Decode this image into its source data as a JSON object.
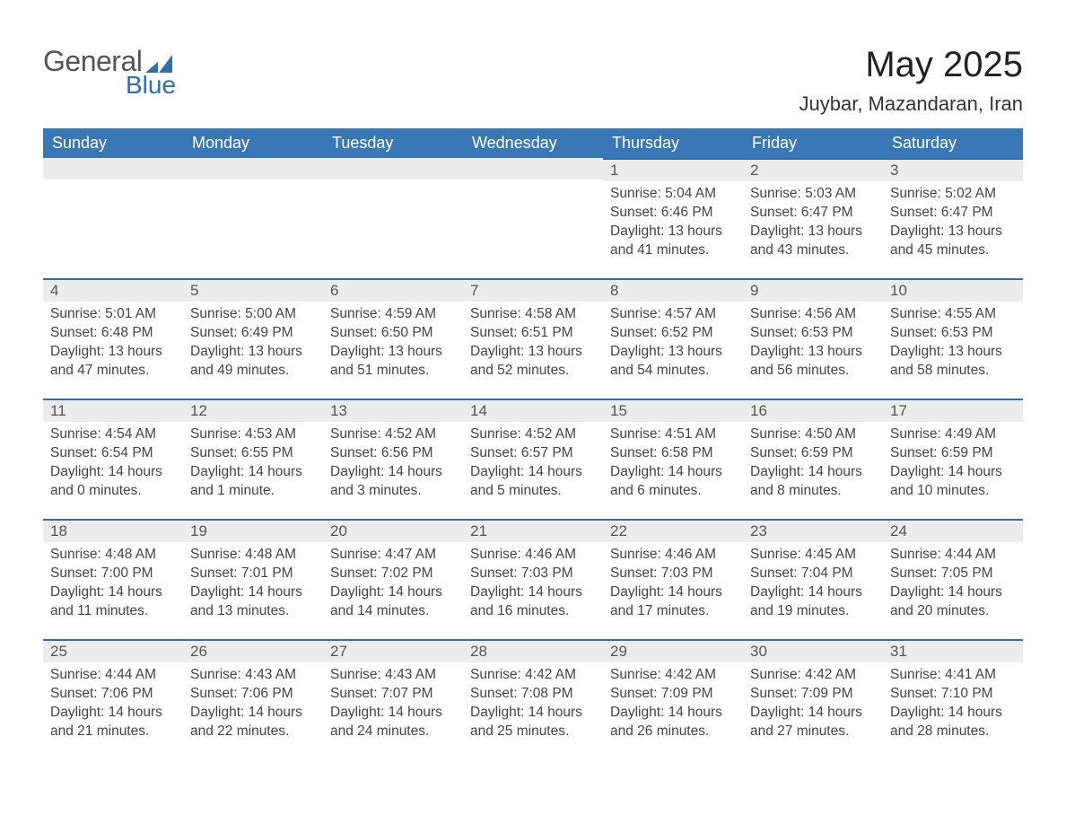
{
  "logo": {
    "text_general": "General",
    "text_blue": "Blue",
    "triangle_color": "#2f6fb0"
  },
  "title": "May 2025",
  "location": "Juybar, Mazandaran, Iran",
  "weekdays": [
    "Sunday",
    "Monday",
    "Tuesday",
    "Wednesday",
    "Thursday",
    "Friday",
    "Saturday"
  ],
  "labels": {
    "sunrise": "Sunrise:",
    "sunset": "Sunset:",
    "daylight": "Daylight:"
  },
  "colors": {
    "header_bg": "#3a77b7",
    "header_text": "#ffffff",
    "day_bar_bg": "#ececec",
    "day_bar_border": "#2f6fb0",
    "body_text": "#444444"
  },
  "typography": {
    "title_fontsize": 40,
    "location_fontsize": 22,
    "header_fontsize": 18,
    "daynum_fontsize": 17,
    "body_fontsize": 15.5
  },
  "weeks": [
    [
      null,
      null,
      null,
      null,
      {
        "n": "1",
        "sr": "5:04 AM",
        "ss": "6:46 PM",
        "dl": "13 hours and 41 minutes."
      },
      {
        "n": "2",
        "sr": "5:03 AM",
        "ss": "6:47 PM",
        "dl": "13 hours and 43 minutes."
      },
      {
        "n": "3",
        "sr": "5:02 AM",
        "ss": "6:47 PM",
        "dl": "13 hours and 45 minutes."
      }
    ],
    [
      {
        "n": "4",
        "sr": "5:01 AM",
        "ss": "6:48 PM",
        "dl": "13 hours and 47 minutes."
      },
      {
        "n": "5",
        "sr": "5:00 AM",
        "ss": "6:49 PM",
        "dl": "13 hours and 49 minutes."
      },
      {
        "n": "6",
        "sr": "4:59 AM",
        "ss": "6:50 PM",
        "dl": "13 hours and 51 minutes."
      },
      {
        "n": "7",
        "sr": "4:58 AM",
        "ss": "6:51 PM",
        "dl": "13 hours and 52 minutes."
      },
      {
        "n": "8",
        "sr": "4:57 AM",
        "ss": "6:52 PM",
        "dl": "13 hours and 54 minutes."
      },
      {
        "n": "9",
        "sr": "4:56 AM",
        "ss": "6:53 PM",
        "dl": "13 hours and 56 minutes."
      },
      {
        "n": "10",
        "sr": "4:55 AM",
        "ss": "6:53 PM",
        "dl": "13 hours and 58 minutes."
      }
    ],
    [
      {
        "n": "11",
        "sr": "4:54 AM",
        "ss": "6:54 PM",
        "dl": "14 hours and 0 minutes."
      },
      {
        "n": "12",
        "sr": "4:53 AM",
        "ss": "6:55 PM",
        "dl": "14 hours and 1 minute."
      },
      {
        "n": "13",
        "sr": "4:52 AM",
        "ss": "6:56 PM",
        "dl": "14 hours and 3 minutes."
      },
      {
        "n": "14",
        "sr": "4:52 AM",
        "ss": "6:57 PM",
        "dl": "14 hours and 5 minutes."
      },
      {
        "n": "15",
        "sr": "4:51 AM",
        "ss": "6:58 PM",
        "dl": "14 hours and 6 minutes."
      },
      {
        "n": "16",
        "sr": "4:50 AM",
        "ss": "6:59 PM",
        "dl": "14 hours and 8 minutes."
      },
      {
        "n": "17",
        "sr": "4:49 AM",
        "ss": "6:59 PM",
        "dl": "14 hours and 10 minutes."
      }
    ],
    [
      {
        "n": "18",
        "sr": "4:48 AM",
        "ss": "7:00 PM",
        "dl": "14 hours and 11 minutes."
      },
      {
        "n": "19",
        "sr": "4:48 AM",
        "ss": "7:01 PM",
        "dl": "14 hours and 13 minutes."
      },
      {
        "n": "20",
        "sr": "4:47 AM",
        "ss": "7:02 PM",
        "dl": "14 hours and 14 minutes."
      },
      {
        "n": "21",
        "sr": "4:46 AM",
        "ss": "7:03 PM",
        "dl": "14 hours and 16 minutes."
      },
      {
        "n": "22",
        "sr": "4:46 AM",
        "ss": "7:03 PM",
        "dl": "14 hours and 17 minutes."
      },
      {
        "n": "23",
        "sr": "4:45 AM",
        "ss": "7:04 PM",
        "dl": "14 hours and 19 minutes."
      },
      {
        "n": "24",
        "sr": "4:44 AM",
        "ss": "7:05 PM",
        "dl": "14 hours and 20 minutes."
      }
    ],
    [
      {
        "n": "25",
        "sr": "4:44 AM",
        "ss": "7:06 PM",
        "dl": "14 hours and 21 minutes."
      },
      {
        "n": "26",
        "sr": "4:43 AM",
        "ss": "7:06 PM",
        "dl": "14 hours and 22 minutes."
      },
      {
        "n": "27",
        "sr": "4:43 AM",
        "ss": "7:07 PM",
        "dl": "14 hours and 24 minutes."
      },
      {
        "n": "28",
        "sr": "4:42 AM",
        "ss": "7:08 PM",
        "dl": "14 hours and 25 minutes."
      },
      {
        "n": "29",
        "sr": "4:42 AM",
        "ss": "7:09 PM",
        "dl": "14 hours and 26 minutes."
      },
      {
        "n": "30",
        "sr": "4:42 AM",
        "ss": "7:09 PM",
        "dl": "14 hours and 27 minutes."
      },
      {
        "n": "31",
        "sr": "4:41 AM",
        "ss": "7:10 PM",
        "dl": "14 hours and 28 minutes."
      }
    ]
  ]
}
